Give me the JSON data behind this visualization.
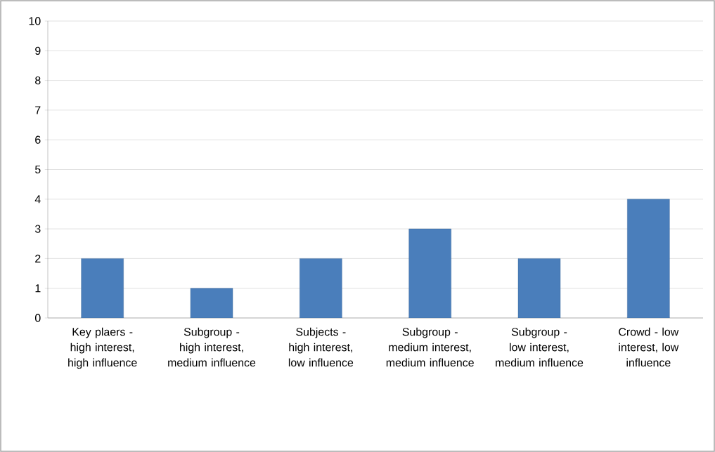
{
  "chart_data": {
    "type": "bar",
    "categories": [
      "Key plaers - high interest, high influence",
      "Subgroup - high interest, medium influence",
      "Subjects - high interest, low influence",
      "Subgroup - medium interest, medium influence",
      "Subgroup - low interest, medium influence",
      "Crowd - low interest, low influence"
    ],
    "values": [
      2,
      1,
      2,
      3,
      2,
      4
    ],
    "color": "#4a7ebb",
    "ylim": [
      0,
      10
    ],
    "yticks": [
      0,
      1,
      2,
      3,
      4,
      5,
      6,
      7,
      8,
      9,
      10
    ],
    "grid": "y"
  }
}
